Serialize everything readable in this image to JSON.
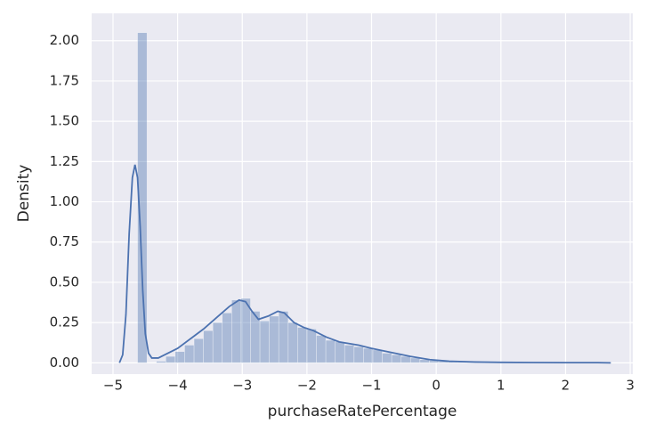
{
  "chart_data": {
    "type": "histogram",
    "xlabel": "purchaseRatePercentage",
    "ylabel": "Density",
    "bins": [
      -4.62,
      -4.474,
      -4.329,
      -4.183,
      -4.038,
      -3.892,
      -3.746,
      -3.601,
      -3.455,
      -3.31,
      -3.164,
      -3.018,
      -2.873,
      -2.727,
      -2.582,
      -2.436,
      -2.29,
      -2.145,
      -1.999,
      -1.854,
      -1.708,
      -1.562,
      -1.417,
      -1.271,
      -1.126,
      -0.98,
      -0.834,
      -0.689,
      -0.543,
      -0.398,
      -0.252,
      -0.106,
      0.039,
      0.185,
      0.33,
      0.476,
      0.622,
      0.767,
      0.913,
      1.058,
      1.204,
      1.35,
      1.495,
      1.641,
      1.786,
      1.932,
      2.078,
      2.223,
      2.369,
      2.514,
      2.66
    ],
    "values": [
      2.05,
      0,
      0.01,
      0.04,
      0.07,
      0.11,
      0.15,
      0.2,
      0.25,
      0.31,
      0.39,
      0.4,
      0.32,
      0.26,
      0.29,
      0.32,
      0.25,
      0.22,
      0.21,
      0.17,
      0.14,
      0.13,
      0.11,
      0.1,
      0.09,
      0.08,
      0.06,
      0.05,
      0.04,
      0.03,
      0.02,
      0.015,
      0.01,
      0.008,
      0.006,
      0.005,
      0.004,
      0.003,
      0.003,
      0.002,
      0.002,
      0.002,
      0.001,
      0.001,
      0.001,
      0.001,
      0.001,
      0.001,
      0.001,
      0.001
    ],
    "color": "#4c72b0",
    "kde": {
      "color": "#4c72b0",
      "x": [
        -4.9,
        -4.85,
        -4.8,
        -4.75,
        -4.7,
        -4.66,
        -4.62,
        -4.58,
        -4.54,
        -4.5,
        -4.45,
        -4.4,
        -4.3,
        -4.2,
        -4.0,
        -3.8,
        -3.6,
        -3.4,
        -3.2,
        -3.05,
        -2.95,
        -2.85,
        -2.75,
        -2.6,
        -2.45,
        -2.35,
        -2.2,
        -2.05,
        -1.9,
        -1.7,
        -1.5,
        -1.2,
        -1.0,
        -0.7,
        -0.4,
        -0.1,
        0.2,
        0.6,
        1.0,
        1.5,
        2.0,
        2.5,
        2.7
      ],
      "values": [
        0,
        0.05,
        0.3,
        0.8,
        1.15,
        1.23,
        1.15,
        0.85,
        0.45,
        0.18,
        0.06,
        0.03,
        0.03,
        0.05,
        0.09,
        0.15,
        0.21,
        0.28,
        0.35,
        0.39,
        0.38,
        0.32,
        0.27,
        0.29,
        0.32,
        0.31,
        0.25,
        0.22,
        0.2,
        0.16,
        0.13,
        0.11,
        0.09,
        0.065,
        0.04,
        0.02,
        0.01,
        0.005,
        0.003,
        0.002,
        0.001,
        0.001,
        0
      ]
    },
    "xlim": [
      -5.33,
      3.04
    ],
    "ylim": [
      -0.07,
      2.17
    ],
    "xticks": [
      {
        "value": -5,
        "label": "−5"
      },
      {
        "value": -4,
        "label": "−4"
      },
      {
        "value": -3,
        "label": "−3"
      },
      {
        "value": -2,
        "label": "−2"
      },
      {
        "value": -1,
        "label": "−1"
      },
      0,
      1,
      2,
      3
    ],
    "yticks": [
      {
        "value": 0,
        "label": "0.00"
      },
      {
        "value": 0.25,
        "label": "0.25"
      },
      {
        "value": 0.5,
        "label": "0.50"
      },
      {
        "value": 0.75,
        "label": "0.75"
      },
      {
        "value": 1,
        "label": "1.00"
      },
      {
        "value": 1.25,
        "label": "1.25"
      },
      {
        "value": 1.5,
        "label": "1.50"
      },
      {
        "value": 1.75,
        "label": "1.75"
      },
      {
        "value": 2,
        "label": "2.00"
      }
    ],
    "grid": true
  }
}
